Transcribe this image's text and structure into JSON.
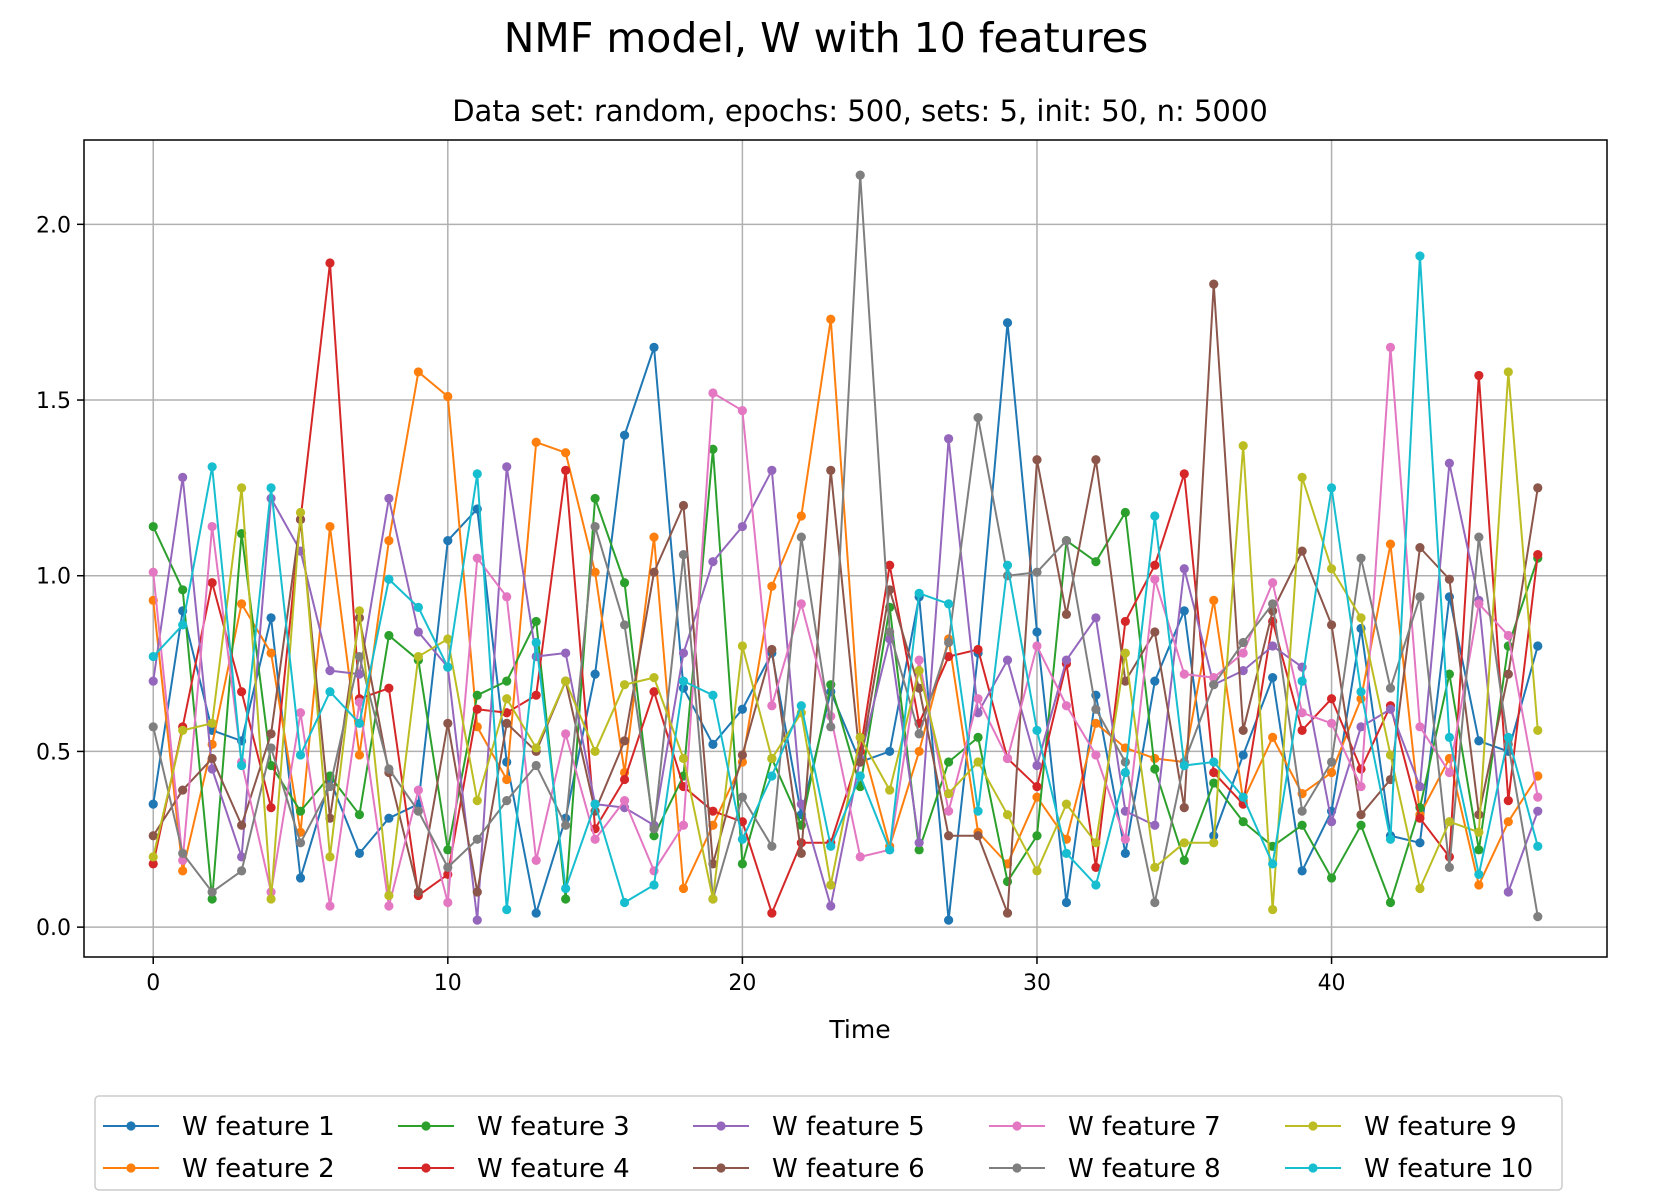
{
  "chart_data": {
    "type": "line",
    "title": "NMF model, W with 10 features",
    "subtitle": "Data set: random, epochs: 500, sets: 5, init: 50, n: 5000",
    "xlabel": "Time",
    "ylabel": "",
    "xlim": [
      -2.35,
      49.35
    ],
    "ylim": [
      -0.085,
      2.24
    ],
    "xticks": [
      0,
      10,
      20,
      30,
      40
    ],
    "yticks": [
      0.0,
      0.5,
      1.0,
      1.5,
      2.0
    ],
    "xtick_labels": [
      "0",
      "10",
      "20",
      "30",
      "40"
    ],
    "ytick_labels": [
      "0.0",
      "0.5",
      "1.0",
      "1.5",
      "2.0"
    ],
    "grid": true,
    "legend_position": "bottom-center",
    "legend_columns": 5,
    "x": [
      0,
      1,
      2,
      3,
      4,
      5,
      6,
      7,
      8,
      9,
      10,
      11,
      12,
      13,
      14,
      15,
      16,
      17,
      18,
      19,
      20,
      21,
      22,
      23,
      24,
      25,
      26,
      27,
      28,
      29,
      30,
      31,
      32,
      33,
      34,
      35,
      36,
      37,
      38,
      39,
      40,
      41,
      42,
      43,
      44,
      45,
      46,
      47
    ],
    "series": [
      {
        "name": "W feature 1",
        "color": "#1f77b4",
        "values": [
          0.35,
          0.9,
          0.56,
          0.53,
          0.88,
          0.14,
          0.42,
          0.21,
          0.31,
          0.35,
          1.1,
          1.19,
          0.47,
          0.04,
          0.31,
          0.72,
          1.4,
          1.65,
          0.68,
          0.52,
          0.62,
          0.78,
          0.32,
          0.67,
          0.47,
          0.5,
          0.94,
          0.02,
          0.78,
          1.72,
          0.84,
          0.07,
          0.66,
          0.21,
          0.7,
          0.9,
          0.26,
          0.49,
          0.71,
          0.16,
          0.33,
          0.85,
          0.26,
          0.24,
          0.94,
          0.53,
          0.5,
          0.8
        ]
      },
      {
        "name": "W feature 2",
        "color": "#ff7f0e",
        "values": [
          0.93,
          0.16,
          0.52,
          0.92,
          0.78,
          0.27,
          1.14,
          0.49,
          1.1,
          1.58,
          1.51,
          0.57,
          0.42,
          1.38,
          1.35,
          1.01,
          0.44,
          1.11,
          0.11,
          0.29,
          0.47,
          0.97,
          1.17,
          1.73,
          0.54,
          0.23,
          0.5,
          0.82,
          0.27,
          0.18,
          0.37,
          0.25,
          0.58,
          0.51,
          0.48,
          0.47,
          0.93,
          0.36,
          0.54,
          0.38,
          0.44,
          0.65,
          1.09,
          0.32,
          0.48,
          0.12,
          0.3,
          0.43
        ]
      },
      {
        "name": "W feature 3",
        "color": "#2ca02c",
        "values": [
          1.14,
          0.96,
          0.08,
          1.12,
          0.46,
          0.33,
          0.43,
          0.32,
          0.83,
          0.76,
          0.22,
          0.66,
          0.7,
          0.87,
          0.08,
          1.22,
          0.98,
          0.26,
          0.43,
          1.36,
          0.18,
          0.48,
          0.29,
          0.69,
          0.4,
          0.91,
          0.22,
          0.47,
          0.54,
          0.13,
          0.26,
          1.1,
          1.04,
          1.18,
          0.45,
          0.19,
          0.41,
          0.3,
          0.23,
          0.29,
          0.14,
          0.29,
          0.07,
          0.34,
          0.72,
          0.22,
          0.8,
          1.05
        ]
      },
      {
        "name": "W feature 4",
        "color": "#d62728",
        "values": [
          0.18,
          0.57,
          0.98,
          0.67,
          0.34,
          1.16,
          1.89,
          0.65,
          0.68,
          0.09,
          0.15,
          0.62,
          0.61,
          0.66,
          1.3,
          0.28,
          0.42,
          0.67,
          0.4,
          0.33,
          0.3,
          0.04,
          0.24,
          0.24,
          0.5,
          1.03,
          0.58,
          0.77,
          0.79,
          0.48,
          0.4,
          0.75,
          0.17,
          0.87,
          1.03,
          1.29,
          0.44,
          0.35,
          0.87,
          0.56,
          0.65,
          0.45,
          0.63,
          0.31,
          0.2,
          1.57,
          0.36,
          1.06
        ]
      },
      {
        "name": "W feature 5",
        "color": "#9467bd",
        "values": [
          0.7,
          1.28,
          0.45,
          0.2,
          1.22,
          1.07,
          0.73,
          0.72,
          1.22,
          0.84,
          0.74,
          0.02,
          1.31,
          0.77,
          0.78,
          0.35,
          0.34,
          0.29,
          0.78,
          1.04,
          1.14,
          1.3,
          0.35,
          0.06,
          0.48,
          0.82,
          0.24,
          1.39,
          0.61,
          0.76,
          0.46,
          0.76,
          0.88,
          0.33,
          0.29,
          1.02,
          0.69,
          0.73,
          0.8,
          0.74,
          0.3,
          0.57,
          0.62,
          0.4,
          1.32,
          0.93,
          0.1,
          0.33
        ]
      },
      {
        "name": "W feature 6",
        "color": "#8c564b",
        "values": [
          0.26,
          0.39,
          0.48,
          0.29,
          0.55,
          1.16,
          0.31,
          0.88,
          0.44,
          0.1,
          0.58,
          0.1,
          0.58,
          0.5,
          0.7,
          0.33,
          0.53,
          1.01,
          1.2,
          0.18,
          0.49,
          0.79,
          0.21,
          1.3,
          0.47,
          0.96,
          0.68,
          0.26,
          0.26,
          0.04,
          1.33,
          0.89,
          1.33,
          0.7,
          0.84,
          0.34,
          1.83,
          0.56,
          0.9,
          1.07,
          0.86,
          0.32,
          0.42,
          1.08,
          0.99,
          0.32,
          0.72,
          1.25
        ]
      },
      {
        "name": "W feature 7",
        "color": "#e377c2",
        "values": [
          1.01,
          0.19,
          1.14,
          0.47,
          0.1,
          0.61,
          0.06,
          0.64,
          0.06,
          0.39,
          0.07,
          1.05,
          0.94,
          0.19,
          0.55,
          0.25,
          0.36,
          0.16,
          0.29,
          1.52,
          1.47,
          0.63,
          0.92,
          0.6,
          0.2,
          0.22,
          0.76,
          0.33,
          0.65,
          0.48,
          0.8,
          0.63,
          0.49,
          0.25,
          0.99,
          0.72,
          0.71,
          0.78,
          0.98,
          0.61,
          0.58,
          0.4,
          1.65,
          0.57,
          0.44,
          0.92,
          0.83,
          0.37
        ]
      },
      {
        "name": "W feature 8",
        "color": "#7f7f7f",
        "values": [
          0.57,
          0.21,
          0.1,
          0.16,
          0.51,
          0.24,
          0.4,
          0.77,
          0.45,
          0.33,
          0.17,
          0.25,
          0.36,
          0.46,
          0.29,
          1.14,
          0.86,
          0.28,
          1.06,
          0.08,
          0.37,
          0.23,
          1.11,
          0.57,
          2.14,
          0.84,
          0.55,
          0.81,
          1.45,
          1.0,
          1.01,
          1.1,
          0.62,
          0.47,
          0.07,
          0.47,
          0.69,
          0.81,
          0.92,
          0.33,
          0.47,
          1.05,
          0.68,
          0.94,
          0.17,
          1.11,
          0.52,
          0.03
        ]
      },
      {
        "name": "W feature 9",
        "color": "#bcbd22",
        "values": [
          0.2,
          0.56,
          0.58,
          1.25,
          0.08,
          1.18,
          0.2,
          0.9,
          0.09,
          0.77,
          0.82,
          0.36,
          0.65,
          0.51,
          0.7,
          0.5,
          0.69,
          0.71,
          0.48,
          0.08,
          0.8,
          0.48,
          0.61,
          0.12,
          0.54,
          0.39,
          0.73,
          0.38,
          0.47,
          0.32,
          0.16,
          0.35,
          0.24,
          0.78,
          0.17,
          0.24,
          0.24,
          1.37,
          0.05,
          1.28,
          1.02,
          0.88,
          0.49,
          0.11,
          0.3,
          0.27,
          1.58,
          0.56
        ]
      },
      {
        "name": "W feature 10",
        "color": "#17becf",
        "values": [
          0.77,
          0.86,
          1.31,
          0.46,
          1.25,
          0.49,
          0.67,
          0.58,
          0.99,
          0.91,
          0.74,
          1.29,
          0.05,
          0.81,
          0.11,
          0.35,
          0.07,
          0.12,
          0.7,
          0.66,
          0.25,
          0.43,
          0.63,
          0.23,
          0.43,
          0.22,
          0.95,
          0.92,
          0.33,
          1.03,
          0.56,
          0.21,
          0.12,
          0.44,
          1.17,
          0.46,
          0.47,
          0.37,
          0.18,
          0.7,
          1.25,
          0.67,
          0.25,
          1.91,
          0.54,
          0.15,
          0.54,
          0.23
        ]
      }
    ]
  }
}
